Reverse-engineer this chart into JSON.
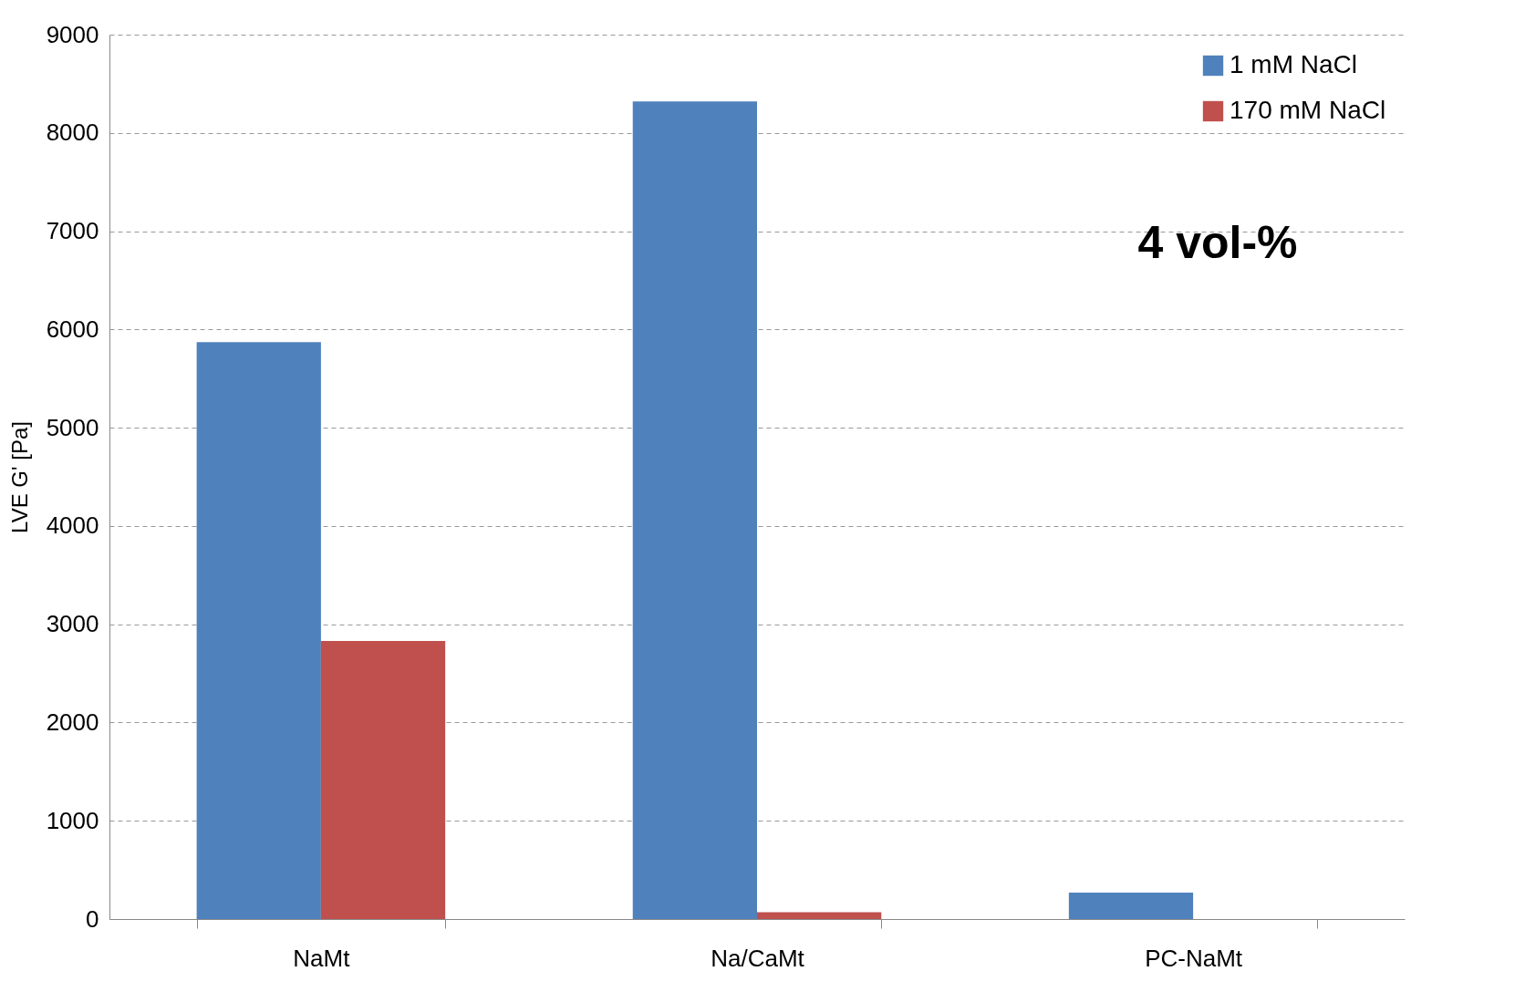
{
  "chart_data": {
    "type": "bar",
    "ylabel": "LVE G' [Pa]",
    "categories": [
      "NaMt",
      "Na/CaMt",
      "PC-NaMt"
    ],
    "series": [
      {
        "name": "1 mM NaCl",
        "color": "#4f81bd",
        "values": [
          5870,
          8320,
          270
        ]
      },
      {
        "name": "170 mM NaCl",
        "color": "#c0504d",
        "values": [
          2830,
          70,
          null
        ]
      }
    ],
    "ylim": [
      0,
      9000
    ],
    "yticks": [
      0,
      1000,
      2000,
      3000,
      4000,
      5000,
      6000,
      7000,
      8000,
      9000
    ],
    "grid": "y",
    "legend": "top right",
    "annotations": [
      "4 vol-%"
    ]
  }
}
